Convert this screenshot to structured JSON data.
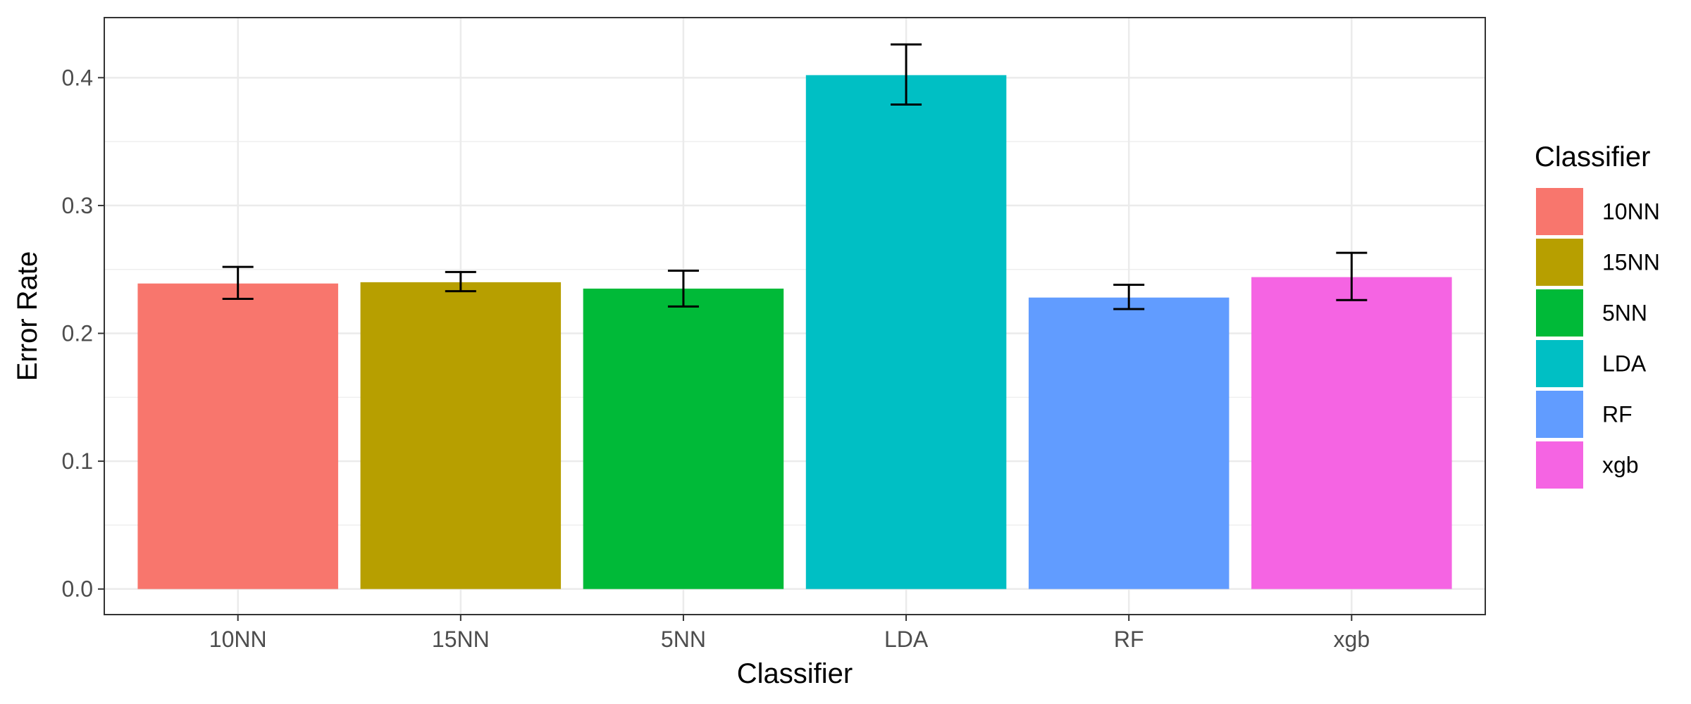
{
  "chart_data": {
    "type": "bar",
    "categories": [
      "10NN",
      "15NN",
      "5NN",
      "LDA",
      "RF",
      "xgb"
    ],
    "values": [
      0.239,
      0.24,
      0.235,
      0.402,
      0.228,
      0.244
    ],
    "error_low": [
      0.227,
      0.233,
      0.221,
      0.379,
      0.219,
      0.226
    ],
    "error_high": [
      0.252,
      0.248,
      0.249,
      0.426,
      0.238,
      0.263
    ],
    "colors": [
      "#F8766D",
      "#B79F00",
      "#00BA38",
      "#00BFC4",
      "#619CFF",
      "#F564E3"
    ],
    "xlabel": "Classifier",
    "ylabel": "Error Rate",
    "ylim": [
      -0.02,
      0.447
    ],
    "yticks": [
      0.0,
      0.1,
      0.2,
      0.3,
      0.4
    ],
    "ytick_labels": [
      "0.0",
      "0.1",
      "0.2",
      "0.3",
      "0.4"
    ],
    "grid": true,
    "legend": {
      "title": "Classifier",
      "position": "right",
      "entries": [
        "10NN",
        "15NN",
        "5NN",
        "LDA",
        "RF",
        "xgb"
      ]
    }
  }
}
